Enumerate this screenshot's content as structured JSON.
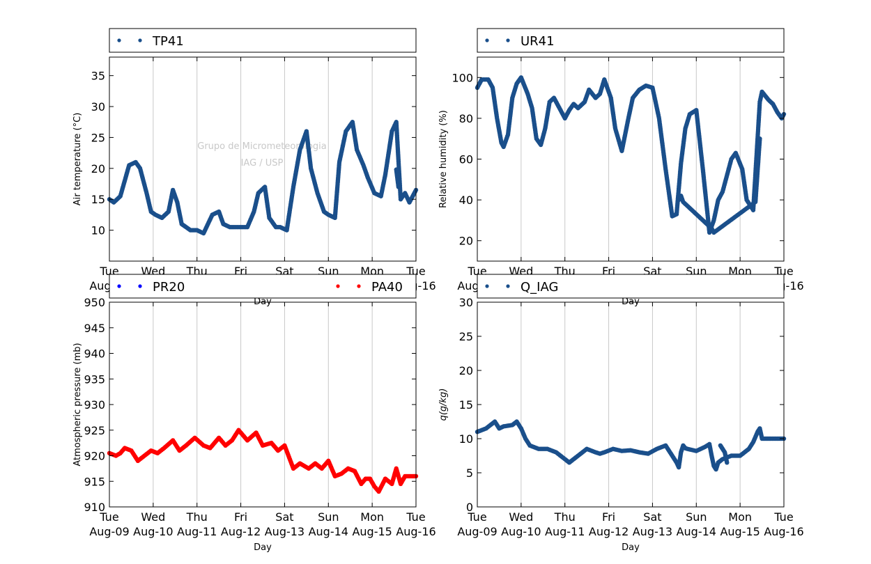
{
  "colors": {
    "navy": "#1a4f8b",
    "blue": "#0000ff",
    "red": "#ff0000",
    "grid": "#c8c8c8"
  },
  "watermark": {
    "line1": "Grupo de Micrometeorologia",
    "line2": "IAG / USP"
  },
  "x_tick_days": [
    "Tue",
    "Wed",
    "Thu",
    "Fri",
    "Sat",
    "Sun",
    "Mon",
    "Tue"
  ],
  "x_tick_dates": [
    "Aug-09",
    "Aug-10",
    "Aug-11",
    "Aug-12",
    "Aug-13",
    "Aug-14",
    "Aug-15",
    "Aug-16"
  ],
  "chart_data": [
    {
      "type": "scatter",
      "title": "",
      "xlabel": "Day",
      "ylabel": "Air temperature (°C)",
      "xlim": [
        0,
        7
      ],
      "ylim": [
        5,
        38
      ],
      "yticks": [
        "10",
        "15",
        "20",
        "25",
        "30",
        "35"
      ],
      "grid": "vertical",
      "legend": "top",
      "series": [
        {
          "name": "TP41",
          "color": "#1a4f8b",
          "x": [
            0,
            0.1,
            0.25,
            0.35,
            0.45,
            0.6,
            0.7,
            0.85,
            0.95,
            1.05,
            1.2,
            1.35,
            1.45,
            1.55,
            1.65,
            1.75,
            1.85,
            2.0,
            2.15,
            2.25,
            2.35,
            2.5,
            2.6,
            2.75,
            2.85,
            3.0,
            3.15,
            3.3,
            3.4,
            3.55,
            3.65,
            3.8,
            3.9,
            4.05,
            4.2,
            4.35,
            4.5,
            4.6,
            4.75,
            4.9,
            5.0,
            5.15,
            5.25,
            5.4,
            5.55,
            5.65,
            5.8,
            5.9,
            6.05,
            6.2,
            6.3,
            6.45,
            6.55,
            6.65,
            6.75,
            6.85,
            7.0
          ],
          "y": [
            15,
            14.5,
            15.5,
            18,
            20.5,
            21,
            20,
            16,
            13,
            12.5,
            12,
            13,
            16.5,
            14.5,
            11,
            10.5,
            10,
            10,
            9.5,
            11,
            12.5,
            13,
            11,
            10.5,
            10.5,
            10.5,
            10.5,
            13,
            16,
            17,
            12,
            10.5,
            10.5,
            10,
            17,
            23,
            26,
            20,
            16,
            13,
            12.5,
            12,
            21,
            26,
            27.5,
            23,
            20.5,
            18.5,
            16,
            15.5,
            19,
            26,
            27.5,
            15,
            16,
            14.5,
            16.5
          ]
        },
        {
          "name": "",
          "color": "#1a4f8b",
          "x": [
            6.55,
            6.6
          ],
          "y": [
            19.8,
            17
          ]
        }
      ]
    },
    {
      "type": "scatter",
      "title": "",
      "xlabel": "Day",
      "ylabel": "Relative humidity (%)",
      "xlim": [
        0,
        7
      ],
      "ylim": [
        10,
        110
      ],
      "yticks": [
        "20",
        "40",
        "60",
        "80",
        "100"
      ],
      "grid": "vertical",
      "legend": "top",
      "series": [
        {
          "name": "UR41",
          "color": "#1a4f8b",
          "x": [
            0,
            0.1,
            0.25,
            0.35,
            0.45,
            0.55,
            0.6,
            0.7,
            0.8,
            0.9,
            1.0,
            1.15,
            1.25,
            1.35,
            1.45,
            1.55,
            1.65,
            1.75,
            1.85,
            2.0,
            2.1,
            2.2,
            2.3,
            2.45,
            2.55,
            2.7,
            2.8,
            2.9,
            3.05,
            3.15,
            3.3,
            3.45,
            3.55,
            3.7,
            3.85,
            4.0,
            4.15,
            4.3,
            4.45,
            4.55,
            4.65,
            4.75,
            4.85,
            5.0,
            5.15,
            5.3,
            5.4,
            5.5,
            5.55,
            5.6,
            5.7,
            5.8,
            5.9,
            6.05,
            6.15,
            6.3,
            6.45,
            6.5,
            6.65,
            6.75,
            6.85,
            6.95,
            7.0
          ],
          "y": [
            95,
            99,
            99,
            95,
            80,
            68,
            66,
            72,
            90,
            97,
            100,
            92,
            85,
            70,
            67,
            75,
            88,
            90,
            86,
            80,
            84,
            87,
            85,
            88,
            94,
            90,
            92,
            99,
            90,
            75,
            64,
            80,
            90,
            94,
            96,
            95,
            80,
            55,
            32,
            33,
            58,
            75,
            82,
            84,
            55,
            24,
            30,
            40,
            42,
            44,
            52,
            60,
            63,
            55,
            40,
            35,
            88,
            93,
            89,
            87,
            83,
            80,
            82
          ]
        },
        {
          "name": "",
          "color": "#1a4f8b",
          "x": [
            4.6,
            4.65,
            4.7,
            5.35,
            5.4,
            6.35,
            6.45
          ],
          "y": [
            40,
            42,
            39,
            26,
            24,
            39,
            70
          ]
        }
      ]
    },
    {
      "type": "scatter",
      "title": "",
      "xlabel": "Day",
      "ylabel": "Atmospheric pressure (mb)",
      "xlim": [
        0,
        7
      ],
      "ylim": [
        910,
        950
      ],
      "yticks": [
        "910",
        "915",
        "920",
        "925",
        "930",
        "935",
        "940",
        "945",
        "950"
      ],
      "grid": "vertical",
      "legend": "top",
      "series": [
        {
          "name": "PR20",
          "color": "#0000ff",
          "x": [],
          "y": []
        },
        {
          "name": "PA40",
          "color": "#ff0000",
          "x": [
            0,
            0.15,
            0.25,
            0.35,
            0.5,
            0.65,
            0.8,
            0.95,
            1.1,
            1.25,
            1.45,
            1.6,
            1.75,
            1.95,
            2.15,
            2.3,
            2.5,
            2.65,
            2.8,
            2.95,
            3.15,
            3.35,
            3.5,
            3.7,
            3.85,
            4.0,
            4.2,
            4.35,
            4.55,
            4.7,
            4.85,
            5.0,
            5.15,
            5.3,
            5.45,
            5.6,
            5.75,
            5.85,
            5.95,
            6.05,
            6.15,
            6.3,
            6.45,
            6.55,
            6.65,
            6.75,
            6.85,
            6.95,
            7.0
          ],
          "y": [
            920.5,
            920,
            920.5,
            921.5,
            921,
            919,
            920,
            921,
            920.5,
            921.5,
            923,
            921,
            922,
            923.5,
            922,
            921.5,
            923.5,
            922,
            923,
            925,
            923,
            924.5,
            922,
            922.5,
            921,
            922,
            917.5,
            918.5,
            917.5,
            918.5,
            917.5,
            919,
            916,
            916.5,
            917.5,
            917,
            914.5,
            915.5,
            915.5,
            914,
            913,
            915.5,
            914.5,
            917.5,
            914.5,
            916,
            916,
            916,
            916
          ]
        }
      ]
    },
    {
      "type": "scatter",
      "title": "",
      "xlabel": "Day",
      "ylabel": "q(g/kg)",
      "xlim": [
        0,
        7
      ],
      "ylim": [
        0,
        30
      ],
      "yticks": [
        "0",
        "5",
        "10",
        "15",
        "20",
        "25",
        "30"
      ],
      "grid": "vertical",
      "legend": "top",
      "series": [
        {
          "name": "Q_IAG",
          "color": "#1a4f8b",
          "x": [
            0,
            0.2,
            0.4,
            0.5,
            0.6,
            0.8,
            0.9,
            1.0,
            1.1,
            1.2,
            1.4,
            1.6,
            1.8,
            2.0,
            2.1,
            2.2,
            2.3,
            2.5,
            2.7,
            2.8,
            2.9,
            3.1,
            3.3,
            3.5,
            3.7,
            3.9,
            4.1,
            4.3,
            4.5,
            4.55,
            4.6,
            4.65,
            4.7,
            4.75,
            4.8,
            5.0,
            5.2,
            5.3,
            5.35,
            5.4,
            5.45,
            5.5,
            5.6,
            5.8,
            6.0,
            6.1,
            6.2,
            6.3,
            6.4,
            6.45,
            6.5,
            6.6,
            6.7,
            7.0
          ],
          "y": [
            11,
            11.5,
            12.5,
            11.5,
            11.8,
            12,
            12.5,
            11.5,
            10,
            9,
            8.5,
            8.5,
            8,
            7,
            6.5,
            7,
            7.5,
            8.5,
            8,
            7.8,
            8,
            8.5,
            8.2,
            8.3,
            8,
            7.8,
            8.5,
            9,
            7,
            6.5,
            5.8,
            8,
            9,
            8.6,
            8.5,
            8.2,
            8.8,
            9.2,
            7.5,
            6,
            5.5,
            6.5,
            7,
            7.5,
            7.5,
            8,
            8.5,
            9.5,
            11,
            11.5,
            10,
            10,
            10,
            10
          ]
        },
        {
          "name": "",
          "color": "#1a4f8b",
          "x": [
            5.55,
            5.6,
            5.65,
            5.7
          ],
          "y": [
            9,
            8.5,
            8,
            6.5
          ]
        }
      ]
    }
  ]
}
